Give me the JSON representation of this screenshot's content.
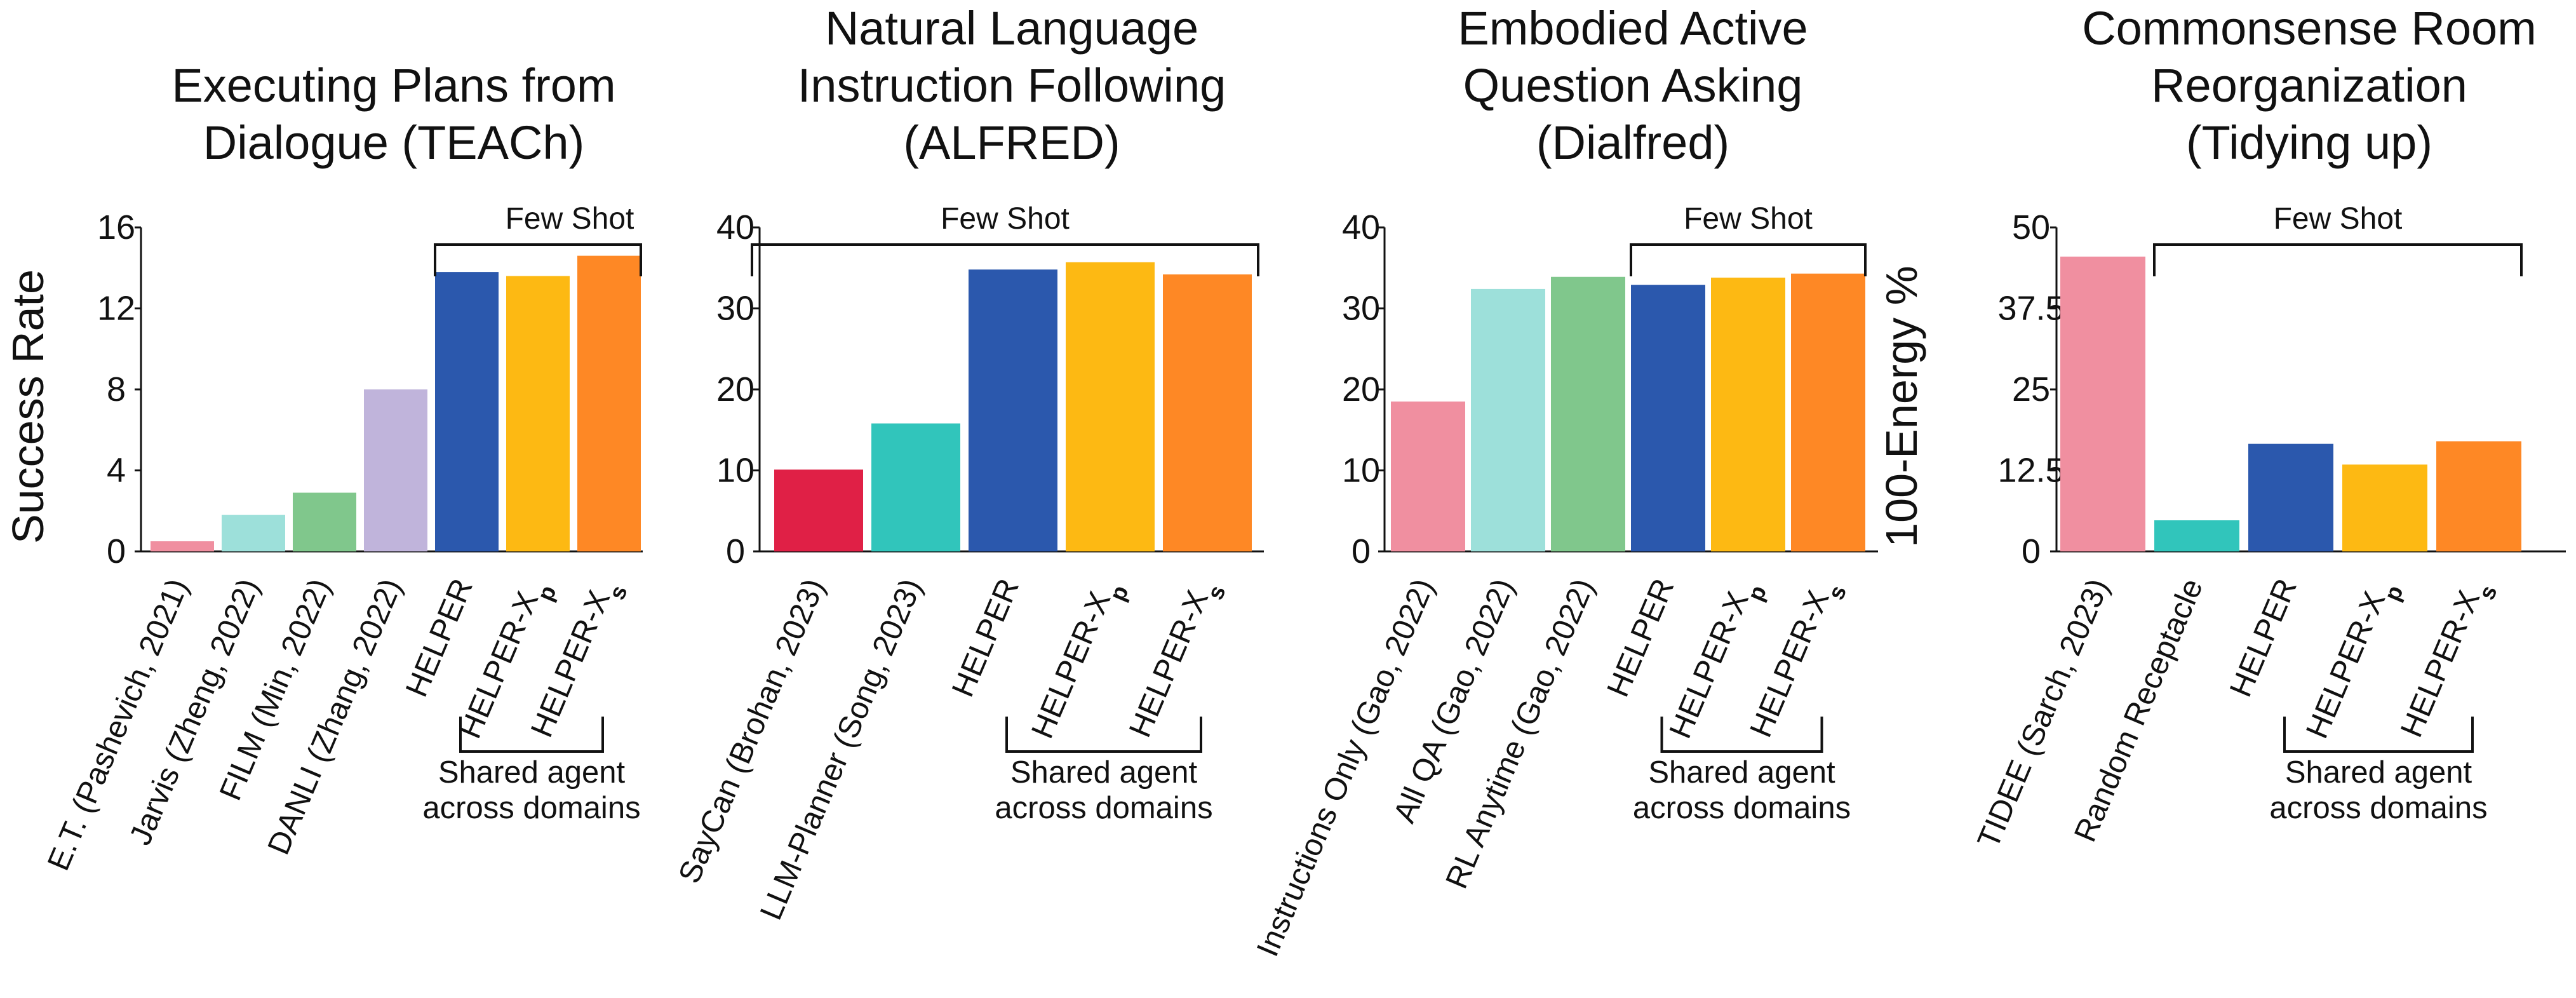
{
  "shared_agent_label": [
    "Shared agent",
    "across domains"
  ],
  "chart_data": [
    {
      "type": "bar",
      "title": [
        "Executing Plans from",
        "Dialogue (TEACh)"
      ],
      "ylabel": "Success Rate",
      "ylim": [
        0,
        16
      ],
      "yticks": [
        "0",
        "4",
        "8",
        "12",
        "16"
      ],
      "categories": [
        "E.T. (Pashevich, 2021)",
        "Jarvis (Zheng, 2022)",
        "FILM (Min, 2022)",
        "DANLI (Zhang, 2022)",
        "HELPER",
        "HELPER-Xp",
        "HELPER-Xs"
      ],
      "values": [
        0.5,
        1.8,
        2.9,
        8.0,
        13.8,
        13.6,
        14.6
      ],
      "colors": [
        "#f08fa0",
        "#9de0da",
        "#80c78c",
        "#c0b4db",
        "#2b58ad",
        "#fdb913",
        "#fe8825"
      ],
      "bracket": {
        "label": "Few Shot",
        "from": 4,
        "to": 6
      },
      "shared_from": 4,
      "shared_to": 6
    },
    {
      "type": "bar",
      "title": [
        "Natural Language",
        "Instruction Following",
        "(ALFRED)"
      ],
      "ylabel": "",
      "ylim": [
        0,
        40
      ],
      "yticks": [
        "0",
        "10",
        "20",
        "30",
        "40"
      ],
      "categories": [
        "SayCan (Brohan, 2023)",
        "LLM-Planner (Song, 2023)",
        "HELPER",
        "HELPER-Xp",
        "HELPER-Xs"
      ],
      "values": [
        10.1,
        15.8,
        34.8,
        35.7,
        34.2
      ],
      "colors": [
        "#e02046",
        "#31c5bb",
        "#2b58ad",
        "#fdb913",
        "#fe8825"
      ],
      "bracket": {
        "label": "Few Shot",
        "from": 0,
        "to": 4
      },
      "shared_from": 2,
      "shared_to": 4
    },
    {
      "type": "bar",
      "title": [
        "Embodied Active",
        "Question Asking",
        "(Dialfred)"
      ],
      "ylabel": "",
      "ylim": [
        0,
        40
      ],
      "yticks": [
        "0",
        "10",
        "20",
        "30",
        "40"
      ],
      "categories": [
        "Instructions Only (Gao, 2022)",
        "All QA (Gao, 2022)",
        "RL Anytime (Gao, 2022)",
        "HELPER",
        "HELPER-Xp",
        "HELPER-Xs"
      ],
      "values": [
        18.5,
        32.4,
        33.9,
        32.9,
        33.8,
        34.3
      ],
      "colors": [
        "#f08fa0",
        "#9de0da",
        "#80c78c",
        "#2b58ad",
        "#fdb913",
        "#fe8825"
      ],
      "bracket": {
        "label": "Few Shot",
        "from": 3,
        "to": 5
      },
      "shared_from": 3,
      "shared_to": 5
    },
    {
      "type": "bar",
      "title": [
        "Commonsense Room",
        "Reorganization",
        "(Tidying up)"
      ],
      "ylabel": "100-Energy %",
      "ylim": [
        0,
        50
      ],
      "yticks": [
        "0",
        "12.5",
        "25",
        "37.5",
        "50"
      ],
      "categories": [
        "TIDEE (Sarch, 2023)",
        "Random Receptacle",
        "HELPER",
        "HELPER-Xp",
        "HELPER-Xs"
      ],
      "values": [
        45.5,
        4.8,
        16.6,
        13.4,
        17.0
      ],
      "colors": [
        "#f08fa0",
        "#31c5bb",
        "#2b58ad",
        "#fdb913",
        "#fe8825"
      ],
      "bracket": {
        "label": "Few Shot",
        "from": 1,
        "to": 4
      },
      "shared_from": 2,
      "shared_to": 4
    }
  ]
}
